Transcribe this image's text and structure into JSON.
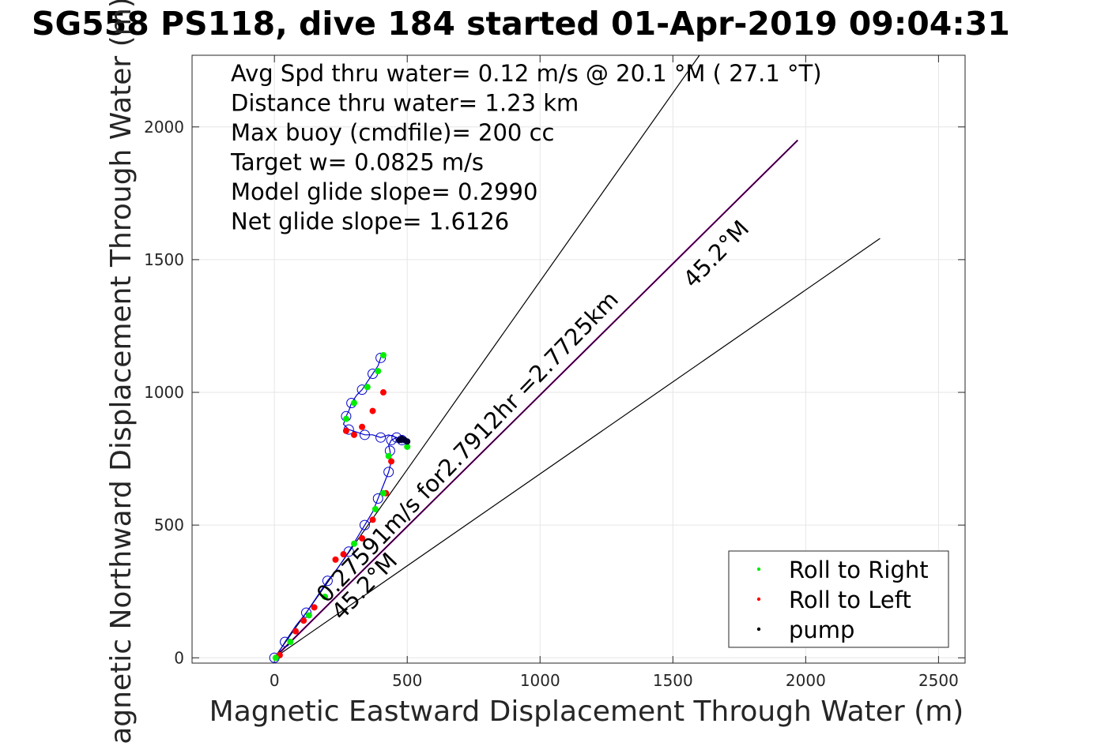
{
  "title": "SG558 PS118, dive 184 started 01-Apr-2019 09:04:31",
  "chart_data": {
    "type": "scatter",
    "xlabel": "Magnetic Eastward Displacement Through Water (m)",
    "ylabel": "Magnetic Northward Displacement Through Water (m)",
    "xlim": [
      -310,
      2600
    ],
    "ylim": [
      -20,
      2270
    ],
    "xticks": [
      0,
      500,
      1000,
      1500,
      2000,
      2500
    ],
    "yticks": [
      0,
      500,
      1000,
      1500,
      2000
    ],
    "xtick_labels": [
      "0",
      "500",
      "1000",
      "1500",
      "2000",
      "2500"
    ],
    "ytick_labels": [
      "0",
      "500",
      "1000",
      "1500",
      "2000"
    ],
    "grid": true,
    "annotations": [
      "Avg Spd thru water=  0.12 m/s @  20.1 °M ( 27.1 °T)",
      "Distance thru water=  1.23 km",
      "Max buoy (cmdfile)= 200 cc",
      "Target w= 0.0825 m/s",
      "Model glide slope= 0.2990",
      "Net glide slope= 1.6126"
    ],
    "current_label": "0.27591m/s for2.7912hr =2.7725km",
    "heading_label_upper": "45.2°M",
    "heading_label_lower": "45.2°M",
    "legend_position": "bottom-right",
    "legend": [
      {
        "label": "Roll to Right",
        "color": "#00ee00"
      },
      {
        "label": "Roll to Left",
        "color": "#ff0000"
      },
      {
        "label": "pump",
        "color": "#000000"
      }
    ],
    "lines": [
      {
        "name": "current",
        "color": "#cc00cc",
        "x": [
          0,
          1970
        ],
        "y": [
          0,
          1950
        ]
      },
      {
        "name": "heading",
        "color": "#000000",
        "x": [
          0,
          1970
        ],
        "y": [
          0,
          1950
        ]
      },
      {
        "name": "left-bound",
        "color": "#000000",
        "x": [
          0,
          1600
        ],
        "y": [
          0,
          2270
        ]
      },
      {
        "name": "right-bound",
        "color": "#000000",
        "x": [
          0,
          2280
        ],
        "y": [
          0,
          1580
        ]
      }
    ],
    "track": {
      "color": "#0000cc",
      "x": [
        0,
        10,
        40,
        80,
        120,
        160,
        200,
        240,
        280,
        310,
        340,
        370,
        390,
        410,
        430,
        440,
        435,
        430,
        440,
        460,
        480,
        480,
        460,
        430,
        400,
        370,
        340,
        310,
        280,
        260,
        270,
        280,
        290,
        310,
        330,
        350,
        370,
        390,
        400,
        410
      ],
      "y": [
        0,
        10,
        60,
        120,
        170,
        230,
        290,
        340,
        400,
        450,
        500,
        550,
        600,
        650,
        700,
        740,
        780,
        800,
        820,
        830,
        820,
        810,
        830,
        840,
        830,
        840,
        840,
        850,
        860,
        880,
        910,
        930,
        960,
        990,
        1010,
        1040,
        1070,
        1100,
        1130,
        1150
      ]
    },
    "roll_right": {
      "x": [
        5,
        60,
        130,
        190,
        300,
        380,
        410,
        430,
        500,
        270,
        300,
        350,
        390,
        410
      ],
      "y": [
        0,
        60,
        160,
        230,
        430,
        560,
        620,
        760,
        795,
        900,
        960,
        1020,
        1080,
        1140
      ]
    },
    "roll_left": {
      "x": [
        20,
        80,
        110,
        150,
        230,
        260,
        330,
        370,
        420,
        440,
        300,
        270,
        330,
        370,
        410
      ],
      "y": [
        10,
        100,
        140,
        190,
        370,
        390,
        450,
        520,
        620,
        740,
        840,
        855,
        870,
        930,
        1000
      ]
    },
    "pump": {
      "x": [
        470,
        480,
        490,
        500
      ],
      "y": [
        820,
        825,
        820,
        815
      ]
    }
  }
}
